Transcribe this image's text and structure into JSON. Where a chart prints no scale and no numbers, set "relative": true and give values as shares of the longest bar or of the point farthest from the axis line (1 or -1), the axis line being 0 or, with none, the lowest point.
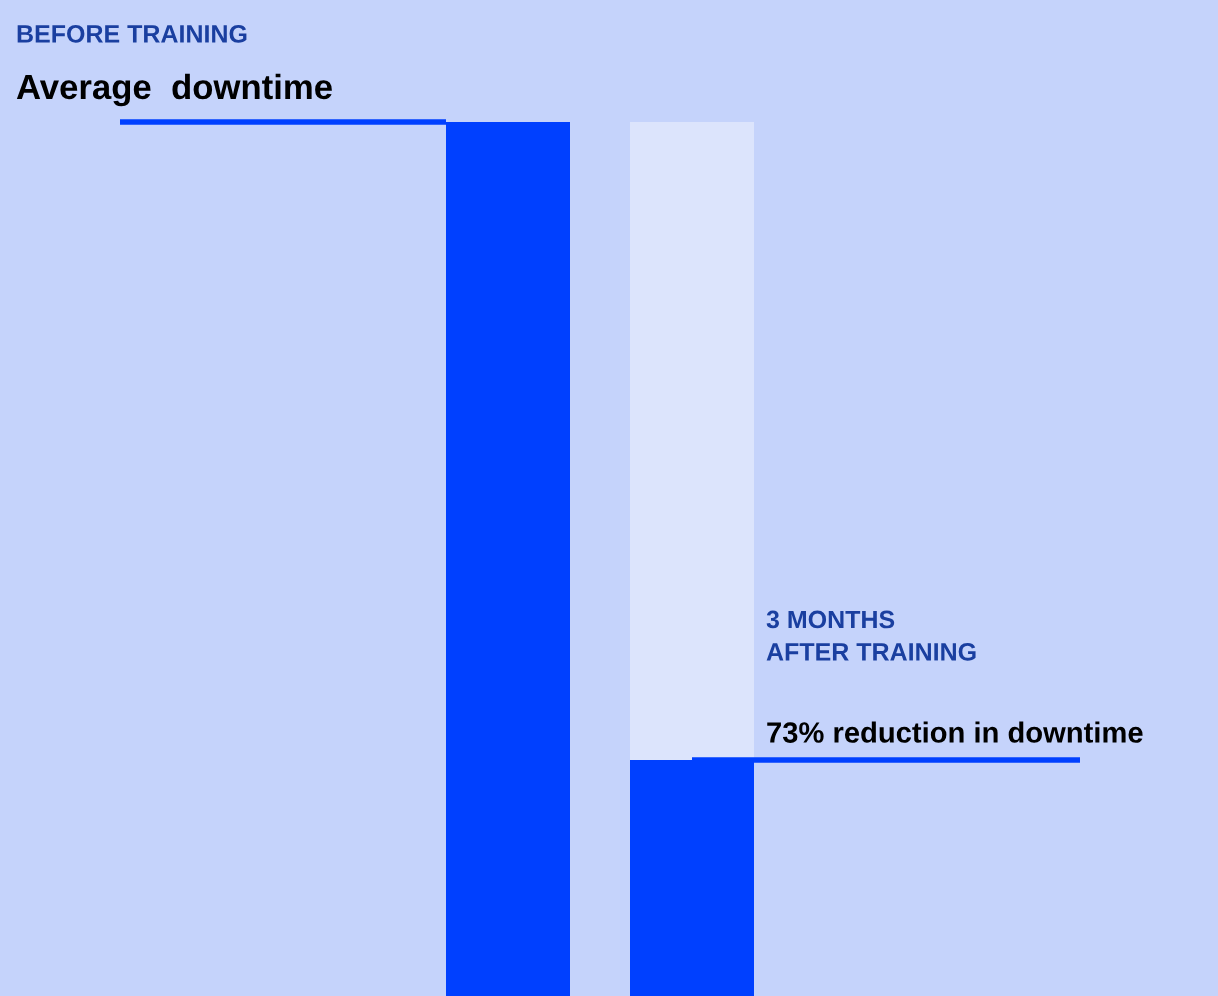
{
  "chart_data": {
    "type": "bar",
    "relative": true,
    "stacked": true,
    "categories": [
      null,
      null
    ],
    "series": [
      {
        "color": "#0040ff",
        "values": [
          1,
          0.27
        ]
      },
      {
        "color": "#dce4fc",
        "values": [
          null,
          0.73
        ]
      }
    ],
    "ref_lines": [
      {
        "axis": "y",
        "value": 1,
        "label": "Average  downtime",
        "color": "#0040ff"
      },
      {
        "axis": "y",
        "value": 0.27,
        "label": "73% reduction in downtime",
        "color": "#0040ff"
      }
    ],
    "annotations": [
      "BEFORE TRAINING",
      "3 MONTHS\nAFTER TRAINING"
    ],
    "grid": false
  }
}
